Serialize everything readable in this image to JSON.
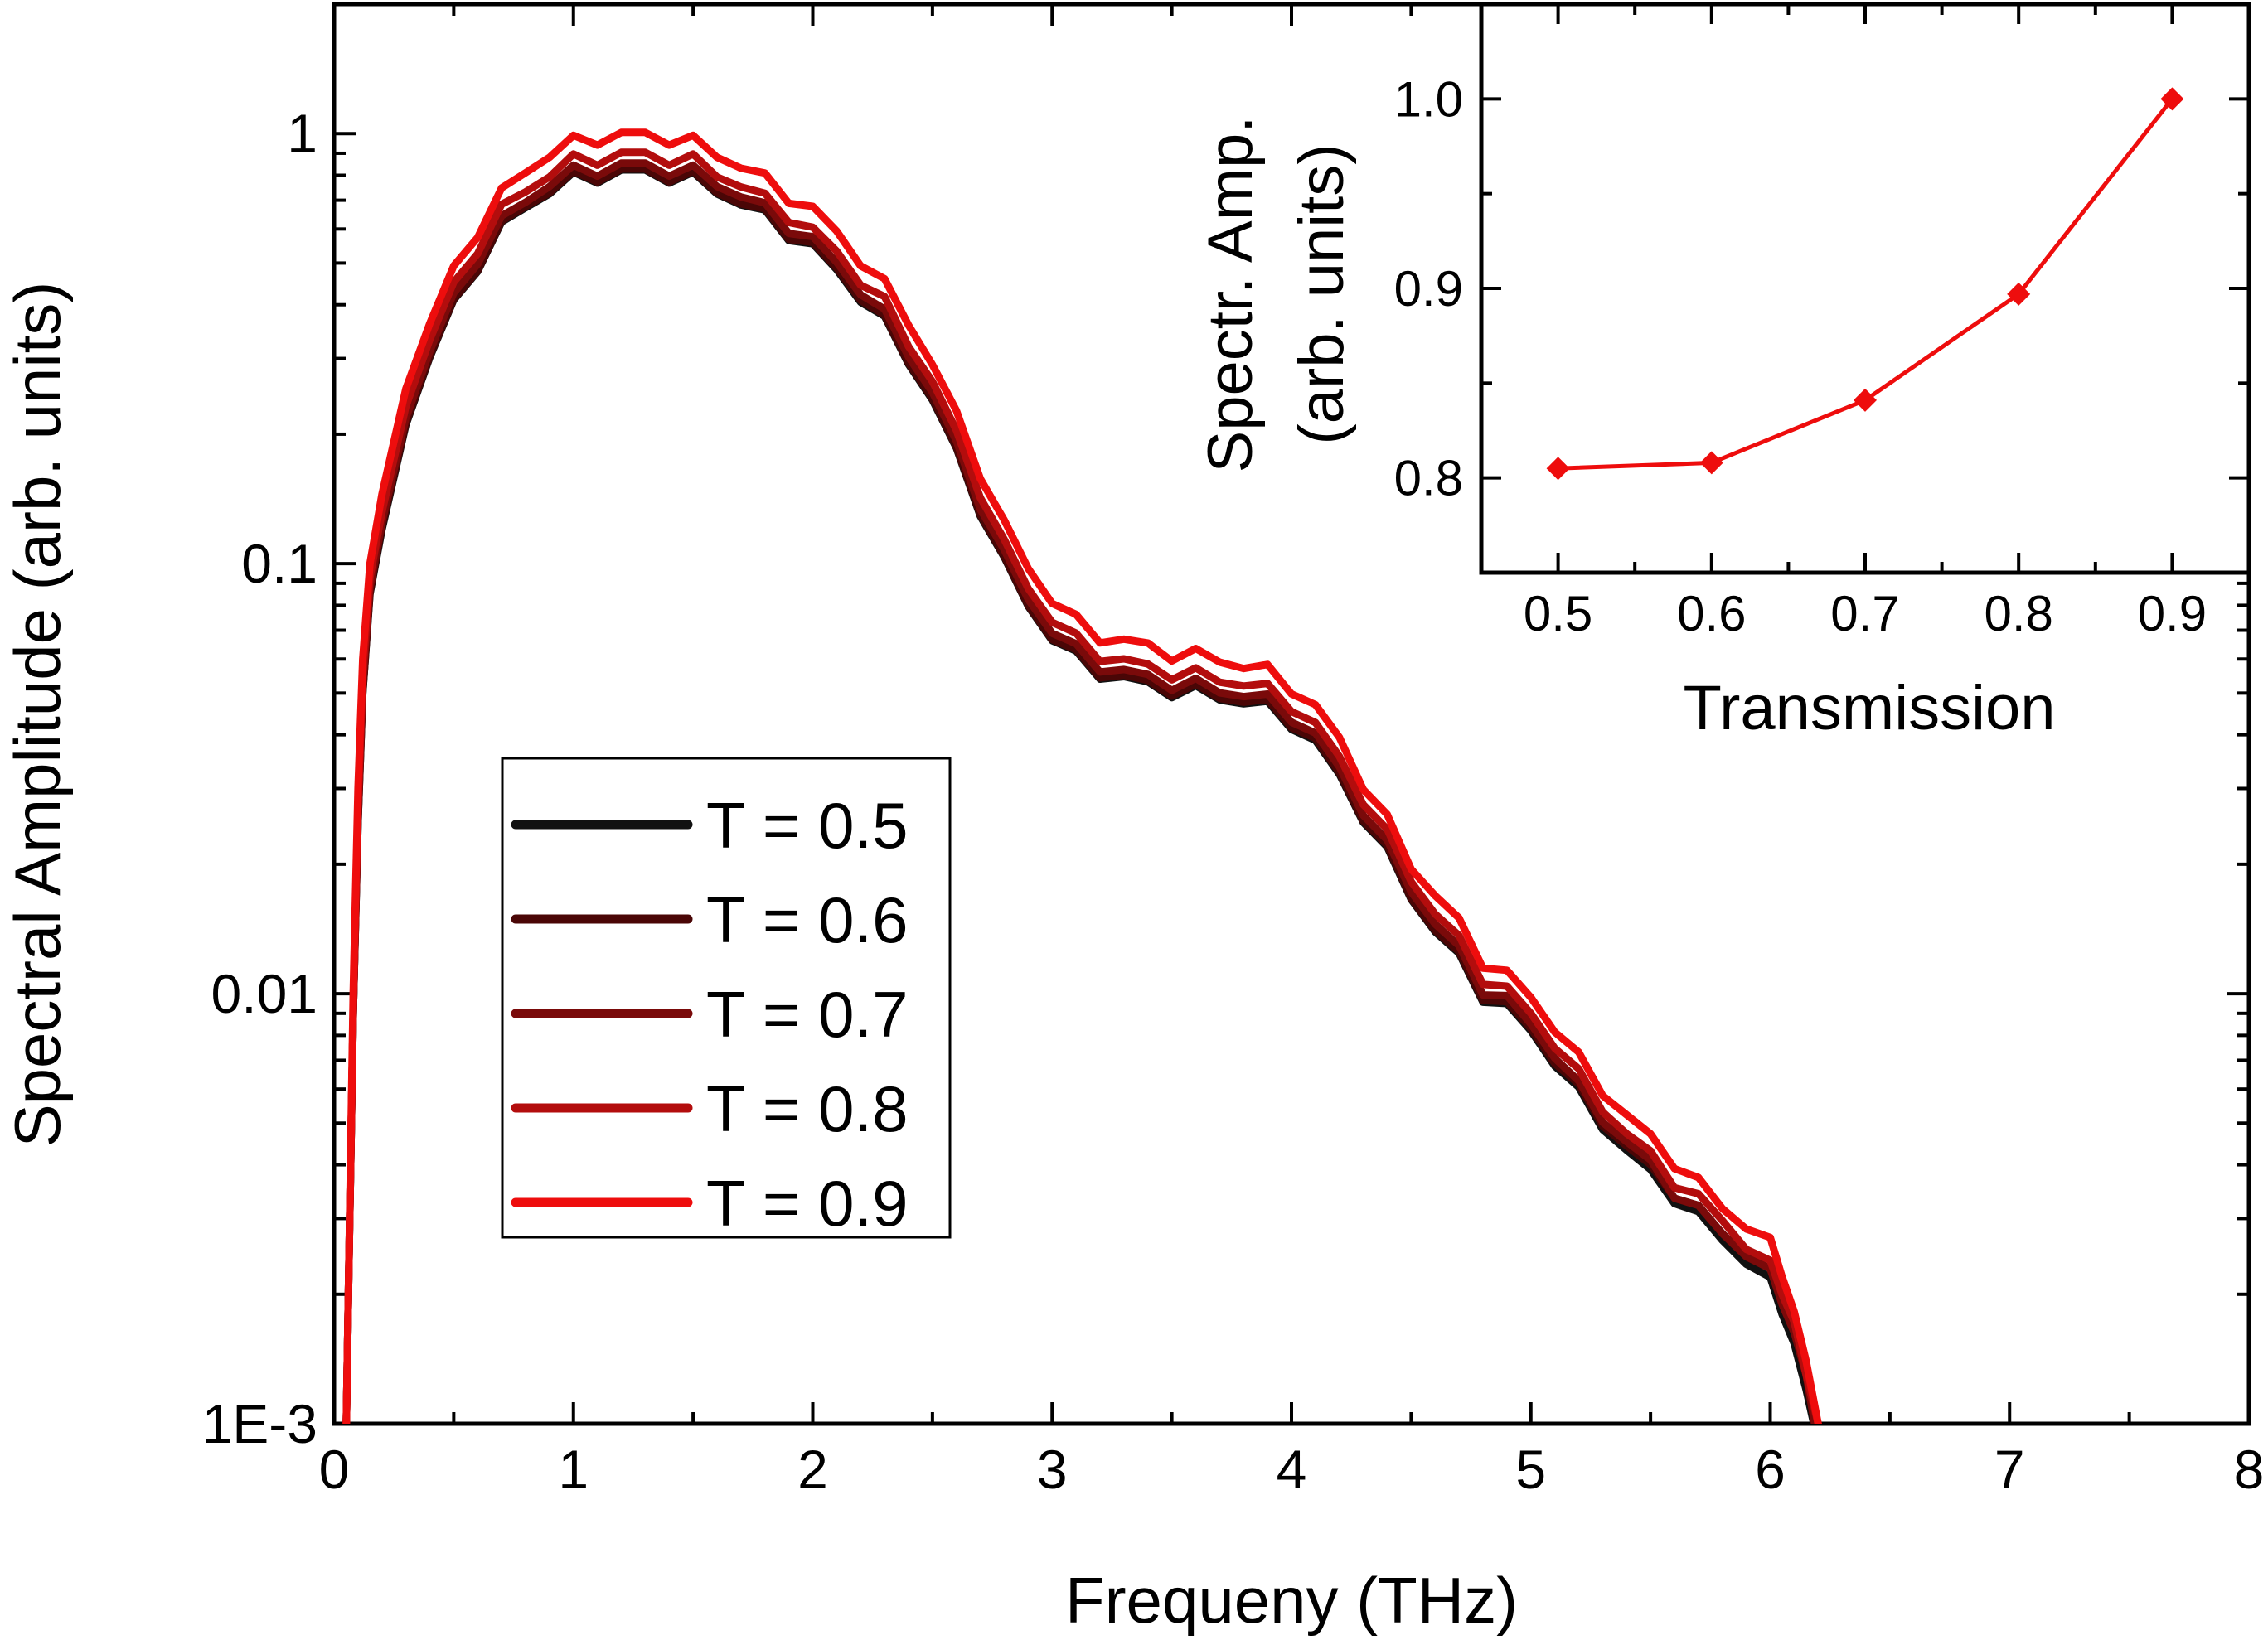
{
  "chart_data": [
    {
      "type": "line",
      "scale_y": "log",
      "xlabel": "Frequeny (THz)",
      "ylabel": "Spectral Amplitude (arb. units)",
      "xlim": [
        0,
        8
      ],
      "ylim": [
        0.001,
        2
      ],
      "x_ticks": [
        "0",
        "1",
        "2",
        "3",
        "4",
        "5",
        "6",
        "7",
        "8"
      ],
      "y_ticks": [
        "1E-3",
        "0.01",
        "0.1",
        "1"
      ],
      "legend_position": "center-left",
      "x": [
        0.05,
        0.06,
        0.08,
        0.1,
        0.12,
        0.15,
        0.2,
        0.3,
        0.4,
        0.5,
        0.6,
        0.7,
        0.8,
        0.9,
        1.0,
        1.1,
        1.2,
        1.3,
        1.4,
        1.5,
        1.6,
        1.7,
        1.8,
        1.9,
        2.0,
        2.1,
        2.2,
        2.3,
        2.4,
        2.5,
        2.6,
        2.7,
        2.8,
        2.9,
        3.0,
        3.1,
        3.2,
        3.3,
        3.4,
        3.5,
        3.6,
        3.7,
        3.8,
        3.9,
        4.0,
        4.1,
        4.2,
        4.3,
        4.4,
        4.5,
        4.6,
        4.7,
        4.8,
        4.9,
        5.0,
        5.1,
        5.2,
        5.3,
        5.4,
        5.5,
        5.6,
        5.7,
        5.8,
        5.9,
        6.0,
        6.05,
        6.1,
        6.15,
        6.2,
        6.22
      ],
      "series": [
        {
          "name": "T = 0.5",
          "color": "#111111",
          "values": [
            0.0009,
            0.002,
            0.009,
            0.025,
            0.05,
            0.085,
            0.12,
            0.21,
            0.3,
            0.4,
            0.5,
            0.6,
            0.68,
            0.74,
            0.78,
            0.8,
            0.81,
            0.81,
            0.8,
            0.78,
            0.74,
            0.69,
            0.64,
            0.59,
            0.54,
            0.48,
            0.42,
            0.36,
            0.3,
            0.24,
            0.18,
            0.135,
            0.1,
            0.08,
            0.068,
            0.06,
            0.056,
            0.054,
            0.052,
            0.051,
            0.05,
            0.049,
            0.048,
            0.046,
            0.043,
            0.038,
            0.032,
            0.026,
            0.021,
            0.017,
            0.014,
            0.012,
            0.01,
            0.0092,
            0.0082,
            0.007,
            0.0058,
            0.005,
            0.0043,
            0.0038,
            0.0034,
            0.003,
            0.0027,
            0.0024,
            0.0021,
            0.0018,
            0.0016,
            0.0012,
            0.0009,
            0.0008
          ]
        },
        {
          "name": "T = 0.6",
          "color": "#4a0606",
          "values": [
            0.0009,
            0.002,
            0.009,
            0.025,
            0.05,
            0.086,
            0.122,
            0.212,
            0.302,
            0.402,
            0.502,
            0.603,
            0.684,
            0.744,
            0.784,
            0.804,
            0.814,
            0.814,
            0.804,
            0.784,
            0.744,
            0.694,
            0.644,
            0.594,
            0.544,
            0.484,
            0.424,
            0.362,
            0.302,
            0.242,
            0.181,
            0.136,
            0.1005,
            0.0804,
            0.0684,
            0.0604,
            0.0564,
            0.0544,
            0.0524,
            0.0514,
            0.0504,
            0.0494,
            0.0484,
            0.0464,
            0.0434,
            0.0384,
            0.0323,
            0.0262,
            0.0212,
            0.0171,
            0.0141,
            0.0121,
            0.0101,
            0.0093,
            0.0083,
            0.0071,
            0.0059,
            0.0051,
            0.0044,
            0.0039,
            0.0035,
            0.0031,
            0.0028,
            0.0025,
            0.0022,
            0.0019,
            0.0017,
            0.0013,
            0.0009,
            0.0008
          ]
        },
        {
          "name": "T = 0.7",
          "color": "#7a0a0a",
          "values": [
            0.0009,
            0.002,
            0.009,
            0.026,
            0.052,
            0.088,
            0.125,
            0.218,
            0.31,
            0.415,
            0.52,
            0.62,
            0.7,
            0.77,
            0.81,
            0.83,
            0.84,
            0.84,
            0.83,
            0.81,
            0.77,
            0.72,
            0.665,
            0.613,
            0.561,
            0.499,
            0.437,
            0.374,
            0.312,
            0.25,
            0.187,
            0.14,
            0.104,
            0.083,
            0.0707,
            0.0624,
            0.0582,
            0.0561,
            0.0541,
            0.053,
            0.052,
            0.0509,
            0.0499,
            0.0478,
            0.0447,
            0.0395,
            0.0333,
            0.027,
            0.0218,
            0.0177,
            0.0146,
            0.0125,
            0.0104,
            0.0096,
            0.0085,
            0.0073,
            0.006,
            0.0052,
            0.0045,
            0.004,
            0.0035,
            0.0031,
            0.0028,
            0.0025,
            0.0022,
            0.0019,
            0.0017,
            0.0013,
            0.0009,
            0.0008
          ]
        },
        {
          "name": "T = 0.8",
          "color": "#b30d0d",
          "values": [
            0.0009,
            0.002,
            0.009,
            0.027,
            0.055,
            0.093,
            0.132,
            0.232,
            0.33,
            0.44,
            0.55,
            0.66,
            0.74,
            0.81,
            0.86,
            0.88,
            0.89,
            0.89,
            0.88,
            0.86,
            0.81,
            0.76,
            0.7,
            0.65,
            0.59,
            0.53,
            0.46,
            0.4,
            0.33,
            0.265,
            0.198,
            0.149,
            0.11,
            0.088,
            0.075,
            0.066,
            0.0616,
            0.0594,
            0.0572,
            0.0561,
            0.055,
            0.0539,
            0.0528,
            0.0506,
            0.0473,
            0.0418,
            0.0352,
            0.0286,
            0.0231,
            0.0187,
            0.0154,
            0.0132,
            0.011,
            0.0101,
            0.009,
            0.0077,
            0.0064,
            0.0055,
            0.0047,
            0.0042,
            0.0037,
            0.0033,
            0.003,
            0.0026,
            0.0023,
            0.002,
            0.0018,
            0.0013,
            0.001,
            0.0008
          ]
        },
        {
          "name": "T = 0.9",
          "color": "#ee0d0d",
          "values": [
            0.0009,
            0.002,
            0.01,
            0.03,
            0.06,
            0.1,
            0.145,
            0.255,
            0.36,
            0.48,
            0.6,
            0.72,
            0.82,
            0.9,
            0.95,
            0.98,
            0.99,
            0.99,
            0.98,
            0.95,
            0.9,
            0.84,
            0.78,
            0.72,
            0.66,
            0.59,
            0.51,
            0.44,
            0.37,
            0.29,
            0.22,
            0.165,
            0.122,
            0.098,
            0.083,
            0.073,
            0.068,
            0.066,
            0.064,
            0.062,
            0.061,
            0.06,
            0.058,
            0.056,
            0.052,
            0.046,
            0.039,
            0.031,
            0.025,
            0.02,
            0.017,
            0.0145,
            0.012,
            0.011,
            0.0098,
            0.0084,
            0.007,
            0.006,
            0.0052,
            0.0046,
            0.0041,
            0.0036,
            0.0032,
            0.0029,
            0.0026,
            0.0022,
            0.0019,
            0.0014,
            0.001,
            0.0008
          ]
        }
      ]
    },
    {
      "type": "line",
      "xlabel": "Transmission",
      "ylabel": "Spectr. Amp.",
      "ylabel_line2": "(arb. units)",
      "xlim": [
        0.45,
        0.95
      ],
      "ylim": [
        0.75,
        1.05
      ],
      "x_ticks": [
        "0.5",
        "0.6",
        "0.7",
        "0.8",
        "0.9"
      ],
      "y_ticks": [
        "0.8",
        "0.9",
        "1.0"
      ],
      "marker": "diamond",
      "color": "#ee0d0d",
      "x": [
        0.5,
        0.6,
        0.7,
        0.8,
        0.9
      ],
      "values": [
        0.805,
        0.808,
        0.841,
        0.897,
        1.0
      ]
    }
  ]
}
